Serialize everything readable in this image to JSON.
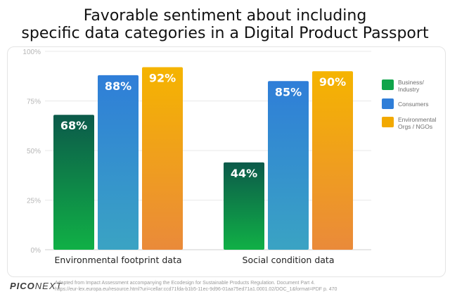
{
  "title_line1": "Favorable sentiment about including",
  "title_line2": "specific data categories in a Digital Product Passport",
  "chart_data": {
    "type": "bar",
    "categories": [
      "Environmental footprint data",
      "Social condition data"
    ],
    "series": [
      {
        "name": "Business/ Industry",
        "values": [
          68,
          44
        ],
        "color_top": "#0c5a4a",
        "color_bottom": "#10b046"
      },
      {
        "name": "Consumers",
        "values": [
          88,
          85
        ],
        "color_top": "#2f7ed8",
        "color_bottom": "#3aa3c3"
      },
      {
        "name": "Environmental Orgs / NGOs",
        "values": [
          92,
          90
        ],
        "color_top": "#f5b400",
        "color_bottom": "#ea8a3a"
      }
    ],
    "data_labels": [
      [
        "68%",
        "44%"
      ],
      [
        "88%",
        "85%"
      ],
      [
        "92%",
        "90%"
      ]
    ],
    "ylim": [
      0,
      100
    ],
    "yticks": [
      0,
      25,
      50,
      75,
      100
    ],
    "ytick_labels": [
      "0%",
      "25%",
      "50%",
      "75%",
      "100%"
    ],
    "legend": [
      {
        "line1": "Business/",
        "line2": "Industry",
        "color": "#10a44a"
      },
      {
        "line1": "Consumers",
        "line2": "",
        "color": "#2f7ed8"
      },
      {
        "line1": "Environmental",
        "line2": "Orgs / NGOs",
        "color": "#f2a900"
      }
    ],
    "legend_position": "right",
    "grid": true
  },
  "footer": {
    "logo_bold": "PICO",
    "logo_rest": "NEXT",
    "source_line1": "Adapted from Impact Assessment accompanying the Ecodesign for Sustainable Products Regulation. Document Part 4.",
    "source_line2": "https://eur-lex.europa.eu/resource.html?uri=cellar:ccd71fda-b1b5-11ec-9d96-01aa75ed71a1.0001.02/DOC_1&format=PDF  p. 470"
  }
}
